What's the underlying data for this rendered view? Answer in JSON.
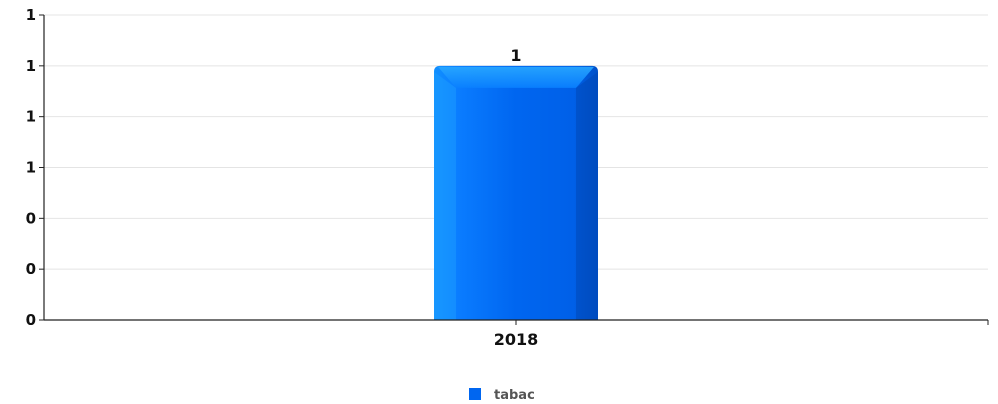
{
  "chart_data": {
    "type": "bar",
    "categories": [
      "2018"
    ],
    "series": [
      {
        "name": "tabac",
        "values": [
          1
        ],
        "color": "#0066f0"
      }
    ],
    "value_labels": [
      "1"
    ],
    "y_ticks": [
      "0",
      "0",
      "0",
      "1",
      "1",
      "1",
      "1"
    ],
    "ylim": [
      0,
      1.2
    ],
    "grid": true,
    "legend": "bottom-center"
  }
}
